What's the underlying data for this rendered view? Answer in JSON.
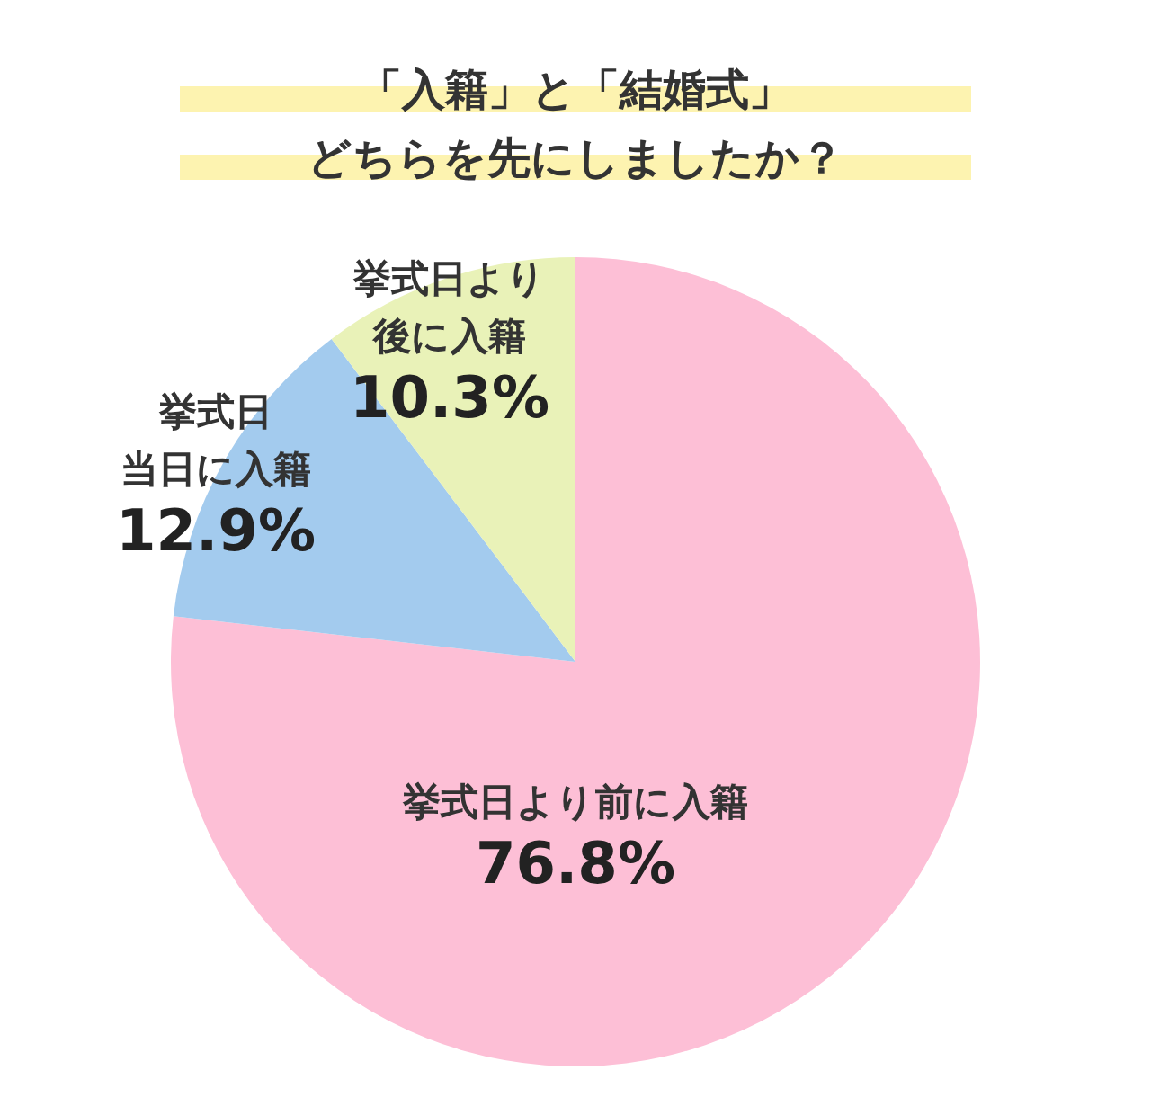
{
  "chart_data": {
    "type": "pie",
    "title": "「入籍」と「結婚式」",
    "subtitle": "どちらを先にしましたか？",
    "categories": [
      "挙式日より前に入籍",
      "挙式日当日に入籍",
      "挙式日より後に入籍"
    ],
    "values": [
      76.8,
      12.9,
      10.3
    ],
    "colors": [
      "#fdbfd6",
      "#a3cbee",
      "#e9f2b8"
    ],
    "value_labels": [
      "76.8%",
      "12.9%",
      "10.3%"
    ]
  }
}
